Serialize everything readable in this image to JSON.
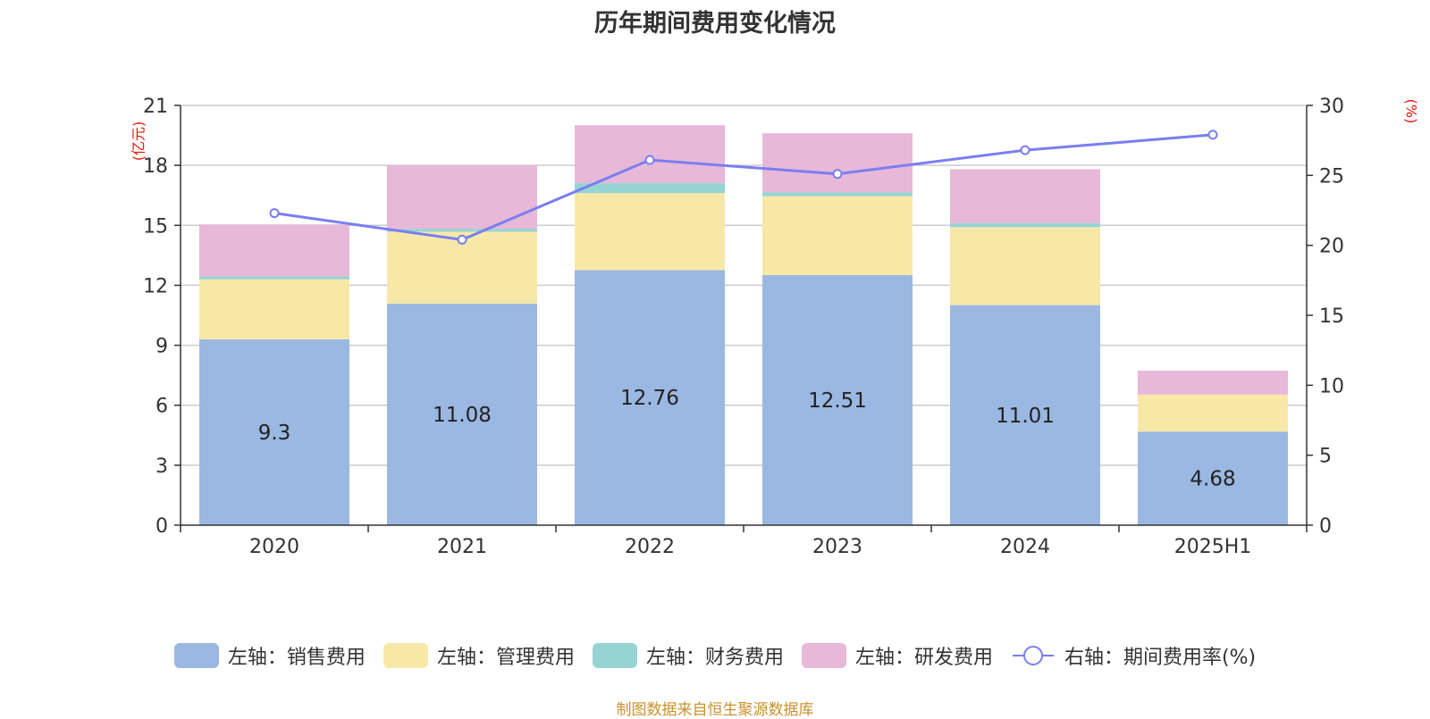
{
  "chart_data": {
    "type": "bar",
    "title": "历年期间费用变化情况",
    "source_text": "制图数据来自恒生聚源数据库",
    "left_axis_unit": "(亿元)",
    "right_axis_unit": "(%)",
    "categories": [
      "2020",
      "2021",
      "2022",
      "2023",
      "2024",
      "2025H1"
    ],
    "left_axis": {
      "min": 0,
      "max": 21,
      "ticks": [
        0,
        3,
        6,
        9,
        12,
        15,
        18,
        21
      ]
    },
    "right_axis": {
      "min": 0,
      "max": 30,
      "ticks": [
        0,
        5,
        10,
        15,
        20,
        25,
        30
      ]
    },
    "stacked": true,
    "grid": true,
    "legend_position": "bottom",
    "series": [
      {
        "name": "左轴：销售费用",
        "axis": "left",
        "type": "bar",
        "color": "#9bb8e2",
        "values": [
          9.3,
          11.08,
          12.76,
          12.51,
          11.01,
          4.68
        ],
        "show_labels": true
      },
      {
        "name": "左轴：管理费用",
        "axis": "left",
        "type": "bar",
        "color": "#f8e8a8",
        "values": [
          3.0,
          3.6,
          3.85,
          3.95,
          3.9,
          1.85
        ],
        "show_labels": false
      },
      {
        "name": "左轴：财务费用",
        "axis": "left",
        "type": "bar",
        "color": "#96d4d4",
        "values": [
          0.15,
          0.15,
          0.5,
          0.2,
          0.2,
          0.0
        ],
        "show_labels": false
      },
      {
        "name": "左轴：研发费用",
        "axis": "left",
        "type": "bar",
        "color": "#e8b8d8",
        "values": [
          2.6,
          3.2,
          2.9,
          2.95,
          2.7,
          1.2
        ],
        "show_labels": false
      },
      {
        "name": "右轴：期间费用率(%)",
        "axis": "right",
        "type": "line",
        "color": "#7a7ef0",
        "values": [
          22.3,
          20.4,
          26.1,
          25.1,
          26.8,
          27.9
        ],
        "show_labels": false
      }
    ]
  }
}
